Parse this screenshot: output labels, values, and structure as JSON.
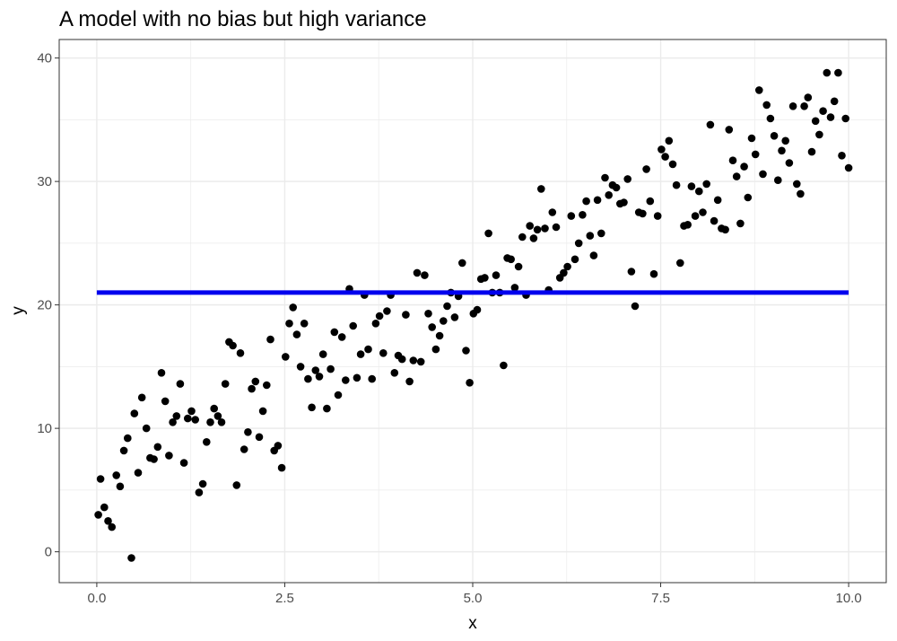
{
  "chart_data": {
    "type": "scatter",
    "title": "A model with no bias but high variance",
    "xlabel": "x",
    "ylabel": "y",
    "xlim": [
      -0.5,
      10.5
    ],
    "ylim": [
      -2.5,
      41.5
    ],
    "x_ticks": [
      0,
      2.5,
      5,
      7.5,
      10
    ],
    "x_tick_labels": [
      "0.0",
      "2.5",
      "5.0",
      "7.5",
      "10.0"
    ],
    "y_ticks": [
      0,
      10,
      20,
      30,
      40
    ],
    "y_tick_labels": [
      "0",
      "10",
      "20",
      "30",
      "40"
    ],
    "grid": true,
    "colors": {
      "points": "#000000",
      "fit_line": "#0000ee",
      "grid": "#ebebeb",
      "panel_border": "#333333"
    },
    "fit_line": {
      "x": [
        0,
        10
      ],
      "y": [
        21,
        21
      ]
    },
    "points": [
      [
        0.02,
        3.0
      ],
      [
        0.05,
        5.9
      ],
      [
        0.1,
        3.6
      ],
      [
        0.15,
        2.5
      ],
      [
        0.2,
        2.0
      ],
      [
        0.26,
        6.2
      ],
      [
        0.31,
        5.3
      ],
      [
        0.36,
        8.2
      ],
      [
        0.41,
        9.2
      ],
      [
        0.46,
        -0.5
      ],
      [
        0.5,
        11.2
      ],
      [
        0.55,
        6.4
      ],
      [
        0.6,
        12.5
      ],
      [
        0.66,
        10.0
      ],
      [
        0.71,
        7.6
      ],
      [
        0.76,
        7.5
      ],
      [
        0.81,
        8.5
      ],
      [
        0.86,
        14.5
      ],
      [
        0.91,
        12.2
      ],
      [
        0.96,
        7.8
      ],
      [
        1.01,
        10.5
      ],
      [
        1.06,
        11.0
      ],
      [
        1.11,
        13.6
      ],
      [
        1.16,
        7.2
      ],
      [
        1.21,
        10.8
      ],
      [
        1.26,
        11.4
      ],
      [
        1.31,
        10.7
      ],
      [
        1.36,
        4.8
      ],
      [
        1.41,
        5.5
      ],
      [
        1.46,
        8.9
      ],
      [
        1.51,
        10.5
      ],
      [
        1.56,
        11.6
      ],
      [
        1.61,
        11.0
      ],
      [
        1.66,
        10.5
      ],
      [
        1.71,
        13.6
      ],
      [
        1.76,
        17.0
      ],
      [
        1.81,
        16.7
      ],
      [
        1.86,
        5.4
      ],
      [
        1.91,
        16.1
      ],
      [
        1.96,
        8.3
      ],
      [
        2.01,
        9.7
      ],
      [
        2.06,
        13.2
      ],
      [
        2.11,
        13.8
      ],
      [
        2.16,
        9.3
      ],
      [
        2.21,
        11.4
      ],
      [
        2.26,
        13.5
      ],
      [
        2.31,
        17.2
      ],
      [
        2.36,
        8.2
      ],
      [
        2.41,
        8.6
      ],
      [
        2.46,
        6.8
      ],
      [
        2.51,
        15.8
      ],
      [
        2.56,
        18.5
      ],
      [
        2.61,
        19.8
      ],
      [
        2.66,
        17.6
      ],
      [
        2.71,
        15.0
      ],
      [
        2.76,
        18.5
      ],
      [
        2.81,
        14.0
      ],
      [
        2.86,
        11.7
      ],
      [
        2.91,
        14.7
      ],
      [
        2.96,
        14.2
      ],
      [
        3.01,
        16.0
      ],
      [
        3.06,
        11.6
      ],
      [
        3.11,
        14.8
      ],
      [
        3.16,
        17.8
      ],
      [
        3.21,
        12.7
      ],
      [
        3.26,
        17.4
      ],
      [
        3.31,
        13.9
      ],
      [
        3.36,
        21.3
      ],
      [
        3.41,
        18.3
      ],
      [
        3.46,
        14.1
      ],
      [
        3.51,
        16.0
      ],
      [
        3.56,
        20.8
      ],
      [
        3.61,
        16.4
      ],
      [
        3.66,
        14.0
      ],
      [
        3.71,
        18.5
      ],
      [
        3.76,
        19.1
      ],
      [
        3.81,
        16.1
      ],
      [
        3.86,
        19.5
      ],
      [
        3.91,
        20.8
      ],
      [
        3.96,
        14.5
      ],
      [
        4.01,
        15.9
      ],
      [
        4.06,
        15.6
      ],
      [
        4.11,
        19.2
      ],
      [
        4.16,
        13.8
      ],
      [
        4.21,
        15.5
      ],
      [
        4.26,
        22.6
      ],
      [
        4.31,
        15.4
      ],
      [
        4.36,
        22.4
      ],
      [
        4.41,
        19.3
      ],
      [
        4.46,
        18.2
      ],
      [
        4.51,
        16.4
      ],
      [
        4.56,
        17.5
      ],
      [
        4.61,
        18.7
      ],
      [
        4.66,
        19.9
      ],
      [
        4.71,
        21.0
      ],
      [
        4.76,
        19.0
      ],
      [
        4.81,
        20.7
      ],
      [
        4.86,
        23.4
      ],
      [
        4.91,
        16.3
      ],
      [
        4.96,
        13.7
      ],
      [
        5.01,
        19.3
      ],
      [
        5.06,
        19.6
      ],
      [
        5.11,
        22.1
      ],
      [
        5.16,
        22.2
      ],
      [
        5.21,
        25.8
      ],
      [
        5.26,
        21.0
      ],
      [
        5.31,
        22.4
      ],
      [
        5.36,
        21.0
      ],
      [
        5.41,
        15.1
      ],
      [
        5.46,
        23.8
      ],
      [
        5.51,
        23.7
      ],
      [
        5.56,
        21.4
      ],
      [
        5.61,
        23.1
      ],
      [
        5.66,
        25.5
      ],
      [
        5.71,
        20.8
      ],
      [
        5.76,
        26.4
      ],
      [
        5.81,
        25.4
      ],
      [
        5.86,
        26.1
      ],
      [
        5.91,
        29.4
      ],
      [
        5.96,
        26.2
      ],
      [
        6.01,
        21.2
      ],
      [
        6.06,
        27.5
      ],
      [
        6.11,
        26.3
      ],
      [
        6.16,
        22.2
      ],
      [
        6.21,
        22.6
      ],
      [
        6.26,
        23.1
      ],
      [
        6.31,
        27.2
      ],
      [
        6.36,
        23.7
      ],
      [
        6.41,
        25.0
      ],
      [
        6.46,
        27.3
      ],
      [
        6.51,
        28.4
      ],
      [
        6.56,
        25.6
      ],
      [
        6.61,
        24.0
      ],
      [
        6.66,
        28.5
      ],
      [
        6.71,
        25.8
      ],
      [
        6.76,
        30.3
      ],
      [
        6.81,
        28.9
      ],
      [
        6.86,
        29.7
      ],
      [
        6.91,
        29.5
      ],
      [
        6.96,
        28.2
      ],
      [
        7.01,
        28.3
      ],
      [
        7.06,
        30.2
      ],
      [
        7.11,
        22.7
      ],
      [
        7.16,
        19.9
      ],
      [
        7.21,
        27.5
      ],
      [
        7.26,
        27.4
      ],
      [
        7.31,
        31.0
      ],
      [
        7.36,
        28.4
      ],
      [
        7.41,
        22.5
      ],
      [
        7.46,
        27.2
      ],
      [
        7.51,
        32.6
      ],
      [
        7.56,
        32.0
      ],
      [
        7.61,
        33.3
      ],
      [
        7.66,
        31.4
      ],
      [
        7.71,
        29.7
      ],
      [
        7.76,
        23.4
      ],
      [
        7.81,
        26.4
      ],
      [
        7.86,
        26.5
      ],
      [
        7.91,
        29.6
      ],
      [
        7.96,
        27.2
      ],
      [
        8.01,
        29.2
      ],
      [
        8.06,
        27.5
      ],
      [
        8.11,
        29.8
      ],
      [
        8.16,
        34.6
      ],
      [
        8.21,
        26.8
      ],
      [
        8.26,
        28.5
      ],
      [
        8.31,
        26.2
      ],
      [
        8.36,
        26.1
      ],
      [
        8.41,
        34.2
      ],
      [
        8.46,
        31.7
      ],
      [
        8.51,
        30.4
      ],
      [
        8.56,
        26.6
      ],
      [
        8.61,
        31.2
      ],
      [
        8.66,
        28.7
      ],
      [
        8.71,
        33.5
      ],
      [
        8.76,
        32.2
      ],
      [
        8.81,
        37.4
      ],
      [
        8.86,
        30.6
      ],
      [
        8.91,
        36.2
      ],
      [
        8.96,
        35.1
      ],
      [
        9.01,
        33.7
      ],
      [
        9.06,
        30.1
      ],
      [
        9.11,
        32.5
      ],
      [
        9.16,
        33.3
      ],
      [
        9.21,
        31.5
      ],
      [
        9.26,
        36.1
      ],
      [
        9.31,
        29.8
      ],
      [
        9.36,
        29.0
      ],
      [
        9.41,
        36.1
      ],
      [
        9.46,
        36.8
      ],
      [
        9.51,
        32.4
      ],
      [
        9.56,
        34.9
      ],
      [
        9.61,
        33.8
      ],
      [
        9.66,
        35.7
      ],
      [
        9.71,
        38.8
      ],
      [
        9.76,
        35.2
      ],
      [
        9.81,
        36.5
      ],
      [
        9.86,
        38.8
      ],
      [
        9.91,
        32.1
      ],
      [
        9.96,
        35.1
      ],
      [
        10.0,
        31.1
      ]
    ]
  }
}
